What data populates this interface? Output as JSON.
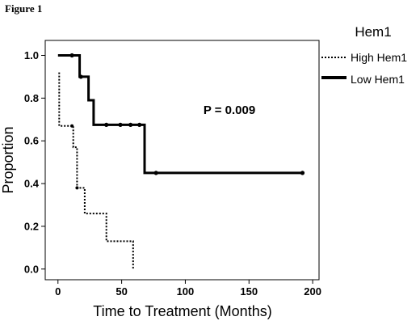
{
  "figure_label": "Figure 1",
  "chart_data": {
    "type": "line",
    "subtype": "kaplan-meier-step",
    "xlabel": "Time to Treatment (Months)",
    "ylabel": "Proportion",
    "xlim": [
      -10,
      205
    ],
    "ylim": [
      -0.05,
      1.07
    ],
    "xticks": [
      0,
      50,
      100,
      150,
      200
    ],
    "yticks": [
      0.0,
      0.2,
      0.4,
      0.6,
      0.8,
      1.0
    ],
    "ytick_labels": [
      "0.0",
      "0.2",
      "0.4",
      "0.6",
      "0.8",
      "1.0"
    ],
    "legend": {
      "title": "Hem1",
      "placement": "top-right, outside plot"
    },
    "annotation": {
      "text": "P = 0.009",
      "x": 122,
      "y": 0.7
    },
    "series": [
      {
        "name": "High Hem1",
        "style": "dotted",
        "steps": [
          [
            1,
            0.92
          ],
          [
            1,
            0.67
          ],
          [
            12,
            0.67
          ],
          [
            12,
            0.57
          ],
          [
            15,
            0.57
          ],
          [
            15,
            0.38
          ],
          [
            21,
            0.38
          ],
          [
            21,
            0.26
          ],
          [
            38,
            0.26
          ],
          [
            38,
            0.13
          ],
          [
            59,
            0.13
          ],
          [
            59,
            0.0
          ]
        ],
        "censored": [
          [
            11,
            0.67
          ],
          [
            15,
            0.38
          ]
        ]
      },
      {
        "name": "Low Hem1",
        "style": "solid",
        "steps": [
          [
            0,
            1.0
          ],
          [
            17,
            1.0
          ],
          [
            17,
            0.9
          ],
          [
            24,
            0.9
          ],
          [
            24,
            0.79
          ],
          [
            28,
            0.79
          ],
          [
            28,
            0.675
          ],
          [
            68,
            0.675
          ],
          [
            68,
            0.45
          ],
          [
            193,
            0.45
          ]
        ],
        "censored": [
          [
            11,
            1.0
          ],
          [
            18,
            0.9
          ],
          [
            38,
            0.675
          ],
          [
            49,
            0.675
          ],
          [
            57,
            0.675
          ],
          [
            64,
            0.675
          ],
          [
            77,
            0.45
          ],
          [
            192,
            0.45
          ]
        ]
      }
    ]
  }
}
